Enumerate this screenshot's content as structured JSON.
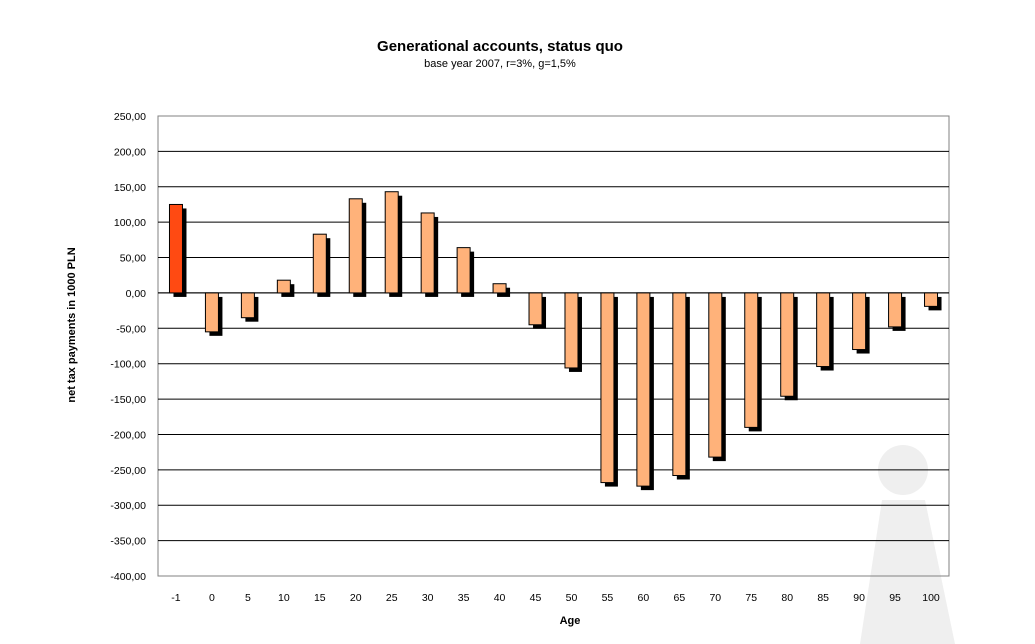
{
  "chart_data": {
    "type": "bar",
    "title": "Generational accounts, status quo",
    "subtitle": "base year 2007, r=3%, g=1,5%",
    "xlabel": "Age",
    "ylabel": "net tax payments in 1000 PLN",
    "categories": [
      "-1",
      "0",
      "5",
      "10",
      "15",
      "20",
      "25",
      "30",
      "35",
      "40",
      "45",
      "50",
      "55",
      "60",
      "65",
      "70",
      "75",
      "80",
      "85",
      "90",
      "95",
      "100"
    ],
    "values": [
      125,
      -55,
      -35,
      18,
      83,
      133,
      143,
      113,
      64,
      13,
      -45,
      -106,
      -268,
      -273,
      -258,
      -232,
      -190,
      -146,
      -104,
      -80,
      -48,
      -19
    ],
    "ylim": [
      -400,
      250
    ],
    "yticks": [
      250,
      200,
      150,
      100,
      50,
      0,
      -50,
      -100,
      -150,
      -200,
      -250,
      -300,
      -350,
      -400
    ],
    "ytick_labels": [
      "250,00",
      "200,00",
      "150,00",
      "100,00",
      "50,00",
      "0,00",
      "-50,00",
      "-100,00",
      "-150,00",
      "-200,00",
      "-250,00",
      "-300,00",
      "-350,00",
      "-400,00"
    ],
    "grid": true,
    "colors": {
      "bar": "#FFB27A",
      "highlight_bar": "#FF4A12",
      "shadow": "#000000",
      "grid": "#000000",
      "frame": "#808080"
    },
    "highlight_category": "-1"
  }
}
